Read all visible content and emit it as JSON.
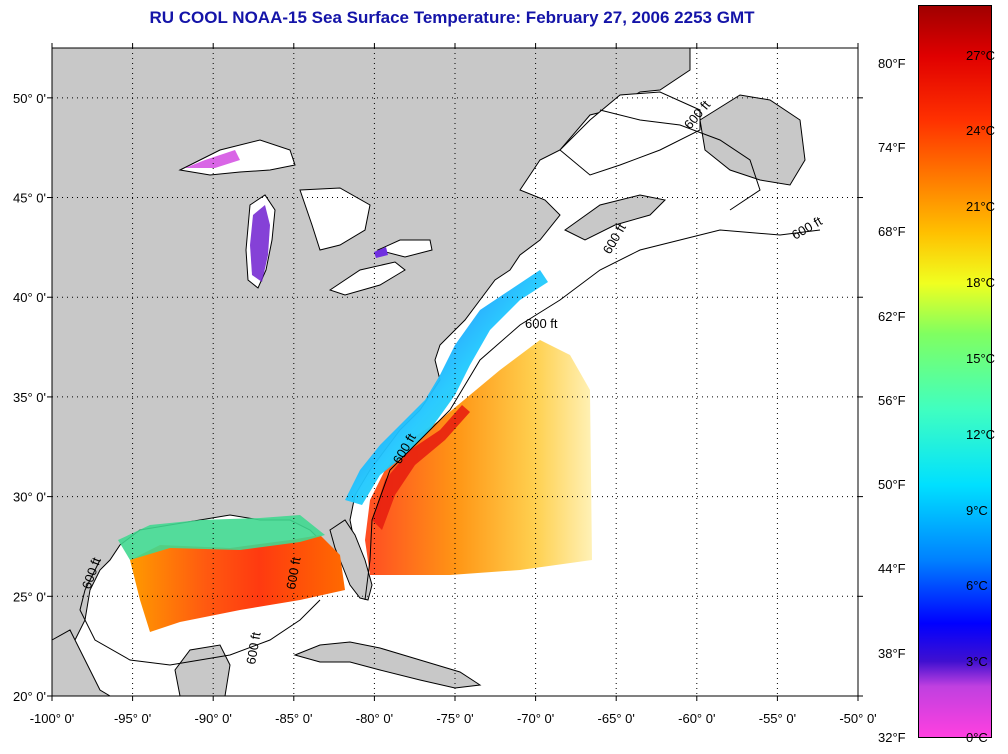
{
  "title": "RU COOL  NOAA-15  Sea Surface Temperature:  February 27, 2006 2253 GMT",
  "lon_ticks": [
    "-100° 0'",
    "-95° 0'",
    "-90° 0'",
    "-85° 0'",
    "-80° 0'",
    "-75° 0'",
    "-70° 0'",
    "-65° 0'",
    "-60° 0'",
    "-55° 0'",
    "-50° 0'"
  ],
  "lat_ticks": [
    "50° 0'",
    "45° 0'",
    "40° 0'",
    "35° 0'",
    "30° 0'",
    "25° 0'",
    "20° 0'"
  ],
  "colorbar": {
    "celsius": [
      "27°C",
      "24°C",
      "21°C",
      "18°C",
      "15°C",
      "12°C",
      "9°C",
      "6°C",
      "3°C",
      "0°C"
    ],
    "fahrenheit": [
      "80°F",
      "74°F",
      "68°F",
      "62°F",
      "56°F",
      "50°F",
      "44°F",
      "38°F",
      "32°F"
    ],
    "range_c": [
      0,
      29
    ]
  },
  "depth_labels": [
    "600 ft",
    "600 ft",
    "600 ft",
    "600 ft",
    "600 ft",
    "600 ft",
    "600 ft",
    "600 ft"
  ],
  "colors": {
    "title": "#1414a8",
    "land": "#c8c8c8",
    "water": "#ffffff"
  }
}
